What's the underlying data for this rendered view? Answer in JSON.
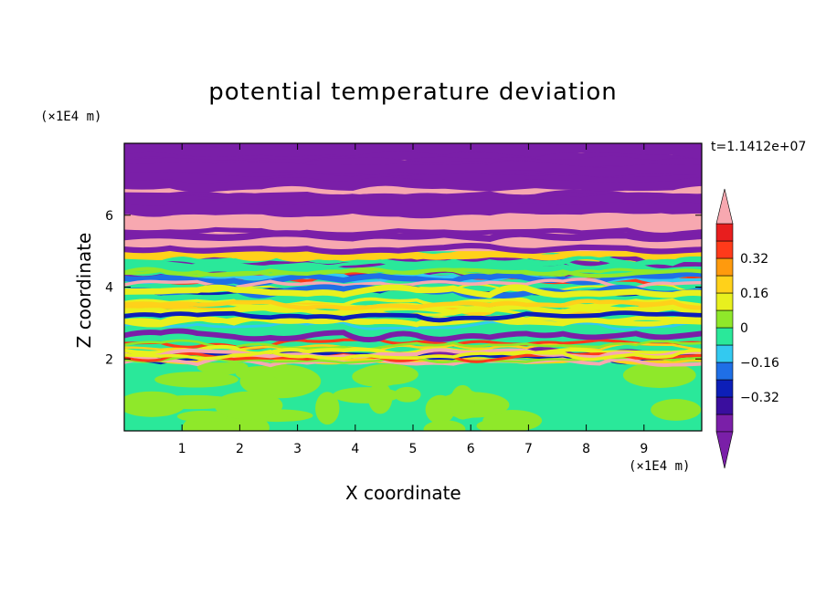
{
  "chart_data": {
    "type": "heatmap",
    "title": "potential temperature deviation",
    "xlabel": "X coordinate",
    "ylabel": "Z coordinate",
    "x_units": "(×1E4 m)",
    "z_units": "(×1E4 m)",
    "timestamp": "t=1.1412e+07",
    "xlim": [
      0,
      10
    ],
    "ylim": [
      0,
      8
    ],
    "x_ticks": [
      1,
      2,
      3,
      4,
      5,
      6,
      7,
      8,
      9
    ],
    "y_ticks": [
      2,
      4,
      6
    ],
    "colorbar": {
      "levels": [
        -0.48,
        -0.4,
        -0.32,
        -0.24,
        -0.16,
        -0.08,
        0,
        0.08,
        0.16,
        0.24,
        0.32,
        0.4,
        0.48
      ],
      "tick_labels": [
        "0.32",
        "0.16",
        "0",
        "−0.16",
        "−0.32"
      ],
      "tick_values": [
        0.32,
        0.16,
        0,
        -0.16,
        -0.32
      ],
      "colors": [
        "#7a1fa8",
        "#3a0e9e",
        "#0d1fb8",
        "#1f6fe6",
        "#33c9f0",
        "#2ae89a",
        "#8fe82a",
        "#e8f01e",
        "#ffd11a",
        "#ff9a0d",
        "#ff3a1a",
        "#e81e1e",
        "#f7a8b0"
      ],
      "extend": "both"
    },
    "layers": [
      {
        "z_range": [
          0,
          1.9
        ],
        "description_colors": [
          "#2ae89a",
          "#8fe82a"
        ]
      },
      {
        "z_range": [
          1.9,
          5.0
        ],
        "description_colors": [
          "#2ae89a",
          "#8fe82a",
          "#e8f01e",
          "#ffd11a",
          "#ff3a1a",
          "#33c9f0",
          "#1f6fe6",
          "#0d1fb8",
          "#f7a8b0",
          "#7a1fa8"
        ]
      },
      {
        "z_range": [
          5.0,
          8.0
        ],
        "description_colors": [
          "#f7a8b0",
          "#7a1fa8"
        ]
      }
    ]
  }
}
